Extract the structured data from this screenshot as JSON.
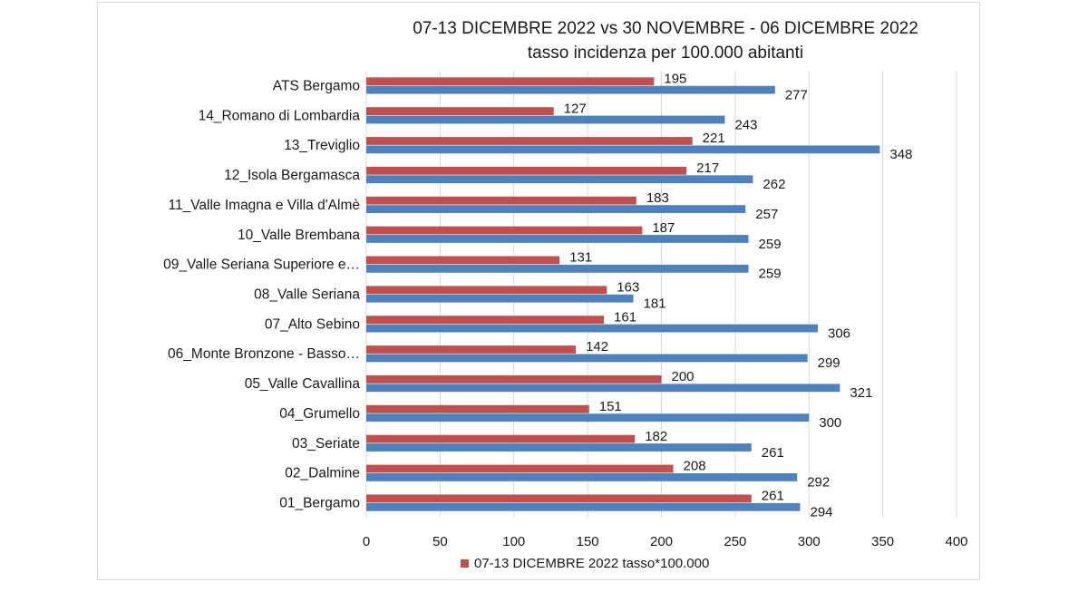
{
  "chart_data": {
    "type": "bar",
    "orientation": "horizontal",
    "title": "07-13 DICEMBRE 2022 vs 30 NOVEMBRE - 06 DICEMBRE 2022",
    "subtitle": "tasso incidenza per 100.000 abitanti",
    "categories": [
      "ATS Bergamo",
      "14_Romano di Lombardia",
      "13_Treviglio",
      "12_Isola Bergamasca",
      "11_Valle Imagna e Villa d'Almè",
      "10_Valle Brembana",
      "09_Valle Seriana Superiore e…",
      "08_Valle Seriana",
      "07_Alto Sebino",
      "06_Monte Bronzone - Basso…",
      "05_Valle Cavallina",
      "04_Grumello",
      "03_Seriate",
      "02_Dalmine",
      "01_Bergamo"
    ],
    "series": [
      {
        "name": "07-13 DICEMBRE 2022 tasso*100.000",
        "color": "#c0504d",
        "values": [
          195,
          127,
          221,
          217,
          183,
          187,
          131,
          163,
          161,
          142,
          200,
          151,
          182,
          208,
          261
        ]
      },
      {
        "color": "#4f81bd",
        "values": [
          277,
          243,
          348,
          262,
          257,
          259,
          259,
          181,
          306,
          299,
          321,
          300,
          261,
          292,
          294
        ]
      }
    ],
    "xlim": [
      0,
      400
    ],
    "xticks": [
      0,
      50,
      100,
      150,
      200,
      250,
      300,
      350,
      400
    ],
    "xtick_labels": [
      "0",
      "50",
      "100",
      "150",
      "200",
      "250",
      "300",
      "350",
      "400"
    ],
    "grid": "vertical",
    "legend": "bottom",
    "gridline_color": "#d9d9d9"
  }
}
